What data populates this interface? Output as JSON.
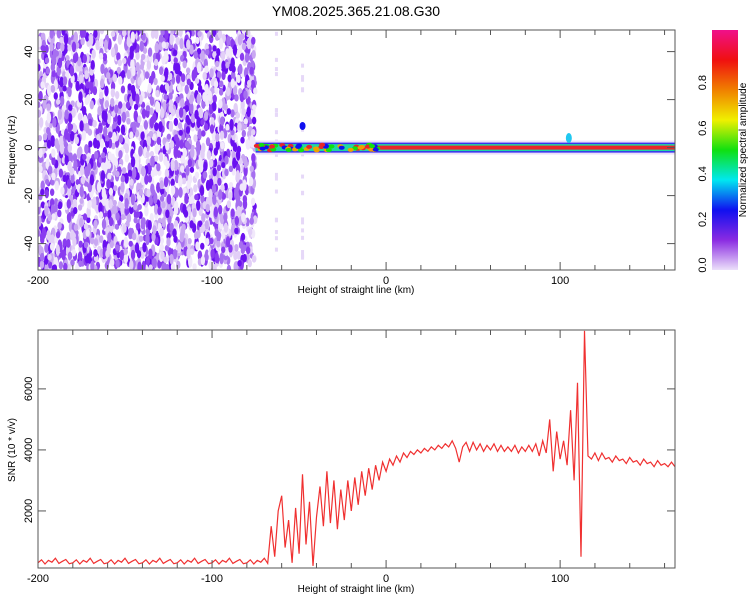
{
  "title": "YM08.2025.365.21.08.G30",
  "chart_data": [
    {
      "type": "heatmap",
      "xlabel": "Height of straight line (km)",
      "ylabel": "Frequency (Hz)",
      "xlim": [
        -200,
        166
      ],
      "ylim": [
        -51,
        49
      ],
      "xticks": [
        -200,
        -100,
        0,
        100
      ],
      "yticks": [
        40,
        20,
        0,
        -20,
        -40
      ],
      "noise_region_km": [
        -200,
        -75
      ],
      "ridge_frequency_hz": 0,
      "ridge_region_km": [
        -75,
        166
      ],
      "colorbar": {
        "label": "Normalized spectral amplitude",
        "range": [
          0,
          1
        ],
        "ticks": [
          0.0,
          0.2,
          0.4,
          0.6,
          0.8
        ],
        "tick_labels": [
          "0.0",
          "0.2",
          "0.4",
          "0.6",
          "0.8"
        ],
        "colors": [
          "#ece0fa",
          "#8a2be2",
          "#1010f0",
          "#00e8f0",
          "#10e010",
          "#f0f000",
          "#f08000",
          "#f01010",
          "#f0108a"
        ]
      }
    },
    {
      "type": "line",
      "xlabel": "Height of straight line (km)",
      "ylabel": "SNR (10 * v/v)",
      "xlim": [
        -200,
        166
      ],
      "ylim": [
        130,
        7930
      ],
      "xticks": [
        -200,
        -100,
        0,
        100
      ],
      "yticks": [
        2000,
        4000,
        6000
      ],
      "color": "#f03030",
      "x0": -200,
      "step": 2,
      "values": [
        300,
        400,
        260,
        380,
        320,
        450,
        280,
        350,
        410,
        270,
        300,
        400,
        260,
        380,
        320,
        450,
        280,
        350,
        410,
        270,
        300,
        400,
        260,
        380,
        320,
        450,
        280,
        350,
        410,
        270,
        300,
        400,
        260,
        380,
        320,
        450,
        280,
        350,
        410,
        270,
        300,
        400,
        260,
        380,
        320,
        450,
        280,
        350,
        410,
        270,
        300,
        400,
        260,
        380,
        320,
        450,
        280,
        350,
        410,
        270,
        300,
        400,
        260,
        380,
        320,
        450,
        280,
        1500,
        500,
        2000,
        2500,
        800,
        1700,
        300,
        2100,
        600,
        3200,
        900,
        2300,
        200,
        1800,
        2800,
        1500,
        3300,
        1600,
        3000,
        1400,
        2700,
        1700,
        3000,
        2000,
        3100,
        2200,
        3300,
        2500,
        3400,
        2700,
        3500,
        3000,
        3600,
        3300,
        3700,
        3500,
        3800,
        3600,
        3900,
        3750,
        3950,
        3850,
        4000,
        3900,
        4050,
        3950,
        4100,
        4000,
        4150,
        4050,
        4200,
        4100,
        4300,
        4050,
        3600,
        4100,
        4250,
        3950,
        4250,
        4000,
        4200,
        3950,
        4150,
        4000,
        4200,
        3950,
        4150,
        3950,
        4100,
        3950,
        4150,
        3900,
        4100,
        3950,
        4150,
        3950,
        4200,
        3800,
        4300,
        3900,
        5000,
        3300,
        4600,
        3700,
        4300,
        3500,
        5300,
        3000,
        6200,
        500,
        7900,
        3800,
        3700,
        3900,
        3650,
        3900,
        3700,
        3750,
        3600,
        3800,
        3650,
        3700,
        3550,
        3750,
        3600,
        3650,
        3500,
        3700,
        3550,
        3600,
        3450,
        3650,
        3500,
        3550,
        3450,
        3600,
        3450
      ]
    }
  ]
}
